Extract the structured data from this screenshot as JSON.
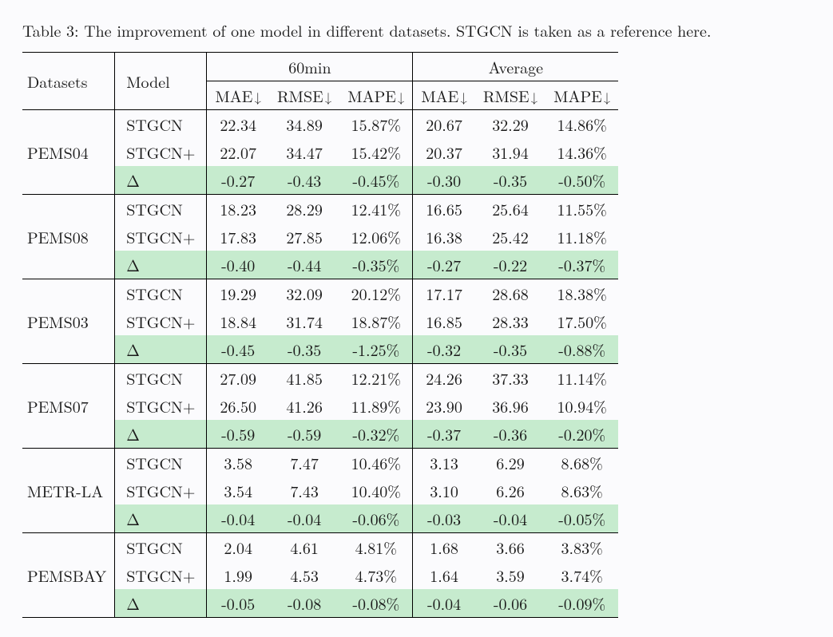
{
  "caption_prefix": "Table 3:",
  "caption_rest": " The improvement of one model in different datasets. STGCN is taken as a reference here.",
  "header": {
    "datasets": "Datasets",
    "model": "Model",
    "group60": "60min",
    "groupAvg": "Average",
    "mae": "MAE",
    "rmse": "RMSE",
    "mape": "MAPE",
    "arrow": "↓"
  },
  "model_labels": {
    "base": "STGCN",
    "plus": "STGCN+",
    "delta": "Δ"
  },
  "highlight_bg": "#c6ebce",
  "background": "#fbfbfd",
  "groups": [
    {
      "dataset": "PEMS04",
      "rows": [
        {
          "model": "base",
          "vals": [
            "22.34",
            "34.89",
            "15.87%",
            "20.67",
            "32.29",
            "14.86%"
          ],
          "hl": false
        },
        {
          "model": "plus",
          "vals": [
            "22.07",
            "34.47",
            "15.42%",
            "20.37",
            "31.94",
            "14.36%"
          ],
          "hl": false
        },
        {
          "model": "delta",
          "vals": [
            "-0.27",
            "-0.43",
            "-0.45%",
            "-0.30",
            "-0.35",
            "-0.50%"
          ],
          "hl": true
        }
      ]
    },
    {
      "dataset": "PEMS08",
      "rows": [
        {
          "model": "base",
          "vals": [
            "18.23",
            "28.29",
            "12.41%",
            "16.65",
            "25.64",
            "11.55%"
          ],
          "hl": false
        },
        {
          "model": "plus",
          "vals": [
            "17.83",
            "27.85",
            "12.06%",
            "16.38",
            "25.42",
            "11.18%"
          ],
          "hl": false
        },
        {
          "model": "delta",
          "vals": [
            "-0.40",
            "-0.44",
            "-0.35%",
            "-0.27",
            "-0.22",
            "-0.37%"
          ],
          "hl": true
        }
      ]
    },
    {
      "dataset": "PEMS03",
      "rows": [
        {
          "model": "base",
          "vals": [
            "19.29",
            "32.09",
            "20.12%",
            "17.17",
            "28.68",
            "18.38%"
          ],
          "hl": false
        },
        {
          "model": "plus",
          "vals": [
            "18.84",
            "31.74",
            "18.87%",
            "16.85",
            "28.33",
            "17.50%"
          ],
          "hl": false
        },
        {
          "model": "delta",
          "vals": [
            "-0.45",
            "-0.35",
            "-1.25%",
            "-0.32",
            "-0.35",
            "-0.88%"
          ],
          "hl": true
        }
      ]
    },
    {
      "dataset": "PEMS07",
      "rows": [
        {
          "model": "base",
          "vals": [
            "27.09",
            "41.85",
            "12.21%",
            "24.26",
            "37.33",
            "11.14%"
          ],
          "hl": false
        },
        {
          "model": "plus",
          "vals": [
            "26.50",
            "41.26",
            "11.89%",
            "23.90",
            "36.96",
            "10.94%"
          ],
          "hl": false
        },
        {
          "model": "delta",
          "vals": [
            "-0.59",
            "-0.59",
            "-0.32%",
            "-0.37",
            "-0.36",
            "-0.20%"
          ],
          "hl": true
        }
      ]
    },
    {
      "dataset": "METR-LA",
      "rows": [
        {
          "model": "base",
          "vals": [
            "3.58",
            "7.47",
            "10.46%",
            "3.13",
            "6.29",
            "8.68%"
          ],
          "hl": false
        },
        {
          "model": "plus",
          "vals": [
            "3.54",
            "7.43",
            "10.40%",
            "3.10",
            "6.26",
            "8.63%"
          ],
          "hl": false
        },
        {
          "model": "delta",
          "vals": [
            "-0.04",
            "-0.04",
            "-0.06%",
            "-0.03",
            "-0.04",
            "-0.05%"
          ],
          "hl": true
        }
      ]
    },
    {
      "dataset": "PEMSBAY",
      "rows": [
        {
          "model": "base",
          "vals": [
            "2.04",
            "4.61",
            "4.81%",
            "1.68",
            "3.66",
            "3.83%"
          ],
          "hl": false
        },
        {
          "model": "plus",
          "vals": [
            "1.99",
            "4.53",
            "4.73%",
            "1.64",
            "3.59",
            "3.74%"
          ],
          "hl": false
        },
        {
          "model": "delta",
          "vals": [
            "-0.05",
            "-0.08",
            "-0.08%",
            "-0.04",
            "-0.06",
            "-0.09%"
          ],
          "hl": true
        }
      ]
    }
  ]
}
